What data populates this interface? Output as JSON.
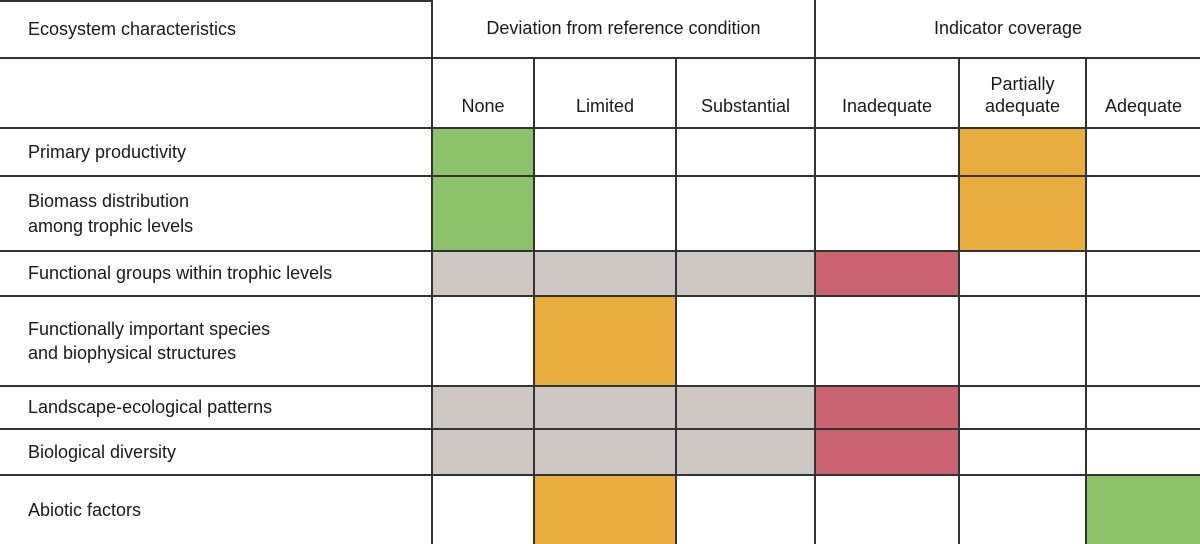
{
  "colors": {
    "green": "#8dc26b",
    "orange": "#e8ad3f",
    "red": "#cb6471",
    "grey": "#cdc8c4",
    "white": "#ffffff",
    "line": "#333333",
    "text": "#1a1a1a"
  },
  "chart_data": {
    "type": "heatmap",
    "title": "",
    "row_header": "Ecosystem characteristics",
    "column_groups": [
      {
        "label": "Deviation from reference condition",
        "columns": [
          "None",
          "Limited",
          "Substantial"
        ]
      },
      {
        "label": "Indicator coverage",
        "columns": [
          "Inadequate",
          "Partially adequate",
          "Adequate"
        ]
      }
    ],
    "columns": [
      "None",
      "Limited",
      "Substantial",
      "Inadequate",
      "Partially adequate",
      "Adequate"
    ],
    "rows": [
      {
        "label": "Primary productivity",
        "label_lines": [
          "Primary productivity"
        ],
        "cells": [
          "green",
          "white",
          "white",
          "white",
          "orange",
          "white"
        ]
      },
      {
        "label": "Biomass distribution among trophic levels",
        "label_lines": [
          "Biomass distribution",
          "among trophic levels"
        ],
        "cells": [
          "green",
          "white",
          "white",
          "white",
          "orange",
          "white"
        ]
      },
      {
        "label": "Functional groups within trophic levels",
        "label_lines": [
          "Functional groups within trophic levels"
        ],
        "cells": [
          "grey",
          "grey",
          "grey",
          "red",
          "white",
          "white"
        ]
      },
      {
        "label": "Functionally important species and biophysical structures",
        "label_lines": [
          "Functionally important species",
          "and biophysical structures"
        ],
        "cells": [
          "white",
          "orange",
          "white",
          "white",
          "white",
          "white"
        ]
      },
      {
        "label": "Landscape-ecological patterns",
        "label_lines": [
          "Landscape-ecological patterns"
        ],
        "cells": [
          "grey",
          "grey",
          "grey",
          "red",
          "white",
          "white"
        ]
      },
      {
        "label": "Biological diversity",
        "label_lines": [
          "Biological diversity"
        ],
        "cells": [
          "grey",
          "grey",
          "grey",
          "red",
          "white",
          "white"
        ]
      },
      {
        "label": "Abiotic factors",
        "label_lines": [
          "Abiotic factors"
        ],
        "cells": [
          "white",
          "orange",
          "white",
          "white",
          "white",
          "green"
        ]
      }
    ]
  }
}
